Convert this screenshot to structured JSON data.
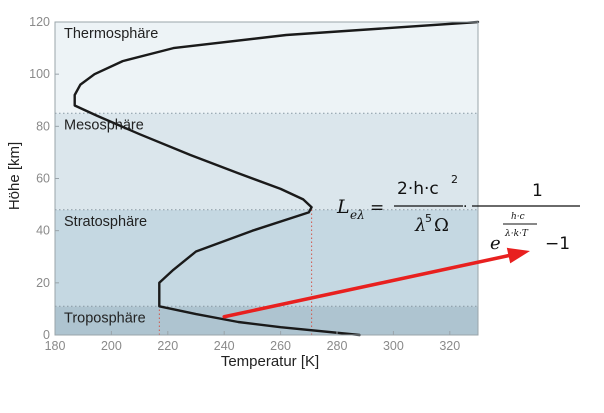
{
  "chart_data": {
    "type": "line",
    "xlabel": "Temperatur [K]",
    "ylabel": "Höhe [km]",
    "xlim": [
      180,
      330
    ],
    "ylim": [
      0,
      120
    ],
    "xticks": [
      "180",
      "200",
      "220",
      "240",
      "260",
      "280",
      "300",
      "320"
    ],
    "yticks": [
      "0",
      "20",
      "40",
      "60",
      "80",
      "100",
      "120"
    ],
    "grid": false,
    "layers": [
      {
        "name": "Troposphäre",
        "from": 0,
        "to": 11,
        "color": "#aec4d0"
      },
      {
        "name": "Stratosphäre",
        "from": 11,
        "to": 48,
        "color": "#c5d8e2"
      },
      {
        "name": "Mesosphäre",
        "from": 48,
        "to": 85,
        "color": "#dbe6ec"
      },
      {
        "name": "Thermosphäre",
        "from": 85,
        "to": 120,
        "color": "#edf3f6"
      }
    ],
    "boundaries_km": [
      11,
      48,
      85
    ],
    "reference_lines_K": [
      217,
      271
    ],
    "series": [
      {
        "x": [
          288,
          260,
          245,
          230,
          217,
          217,
          217,
          222,
          230,
          250,
          270,
          271,
          268,
          260,
          245,
          228,
          210,
          195,
          187,
          187,
          189,
          194,
          204,
          222,
          262,
          330
        ],
        "y": [
          0,
          3,
          5,
          8,
          11,
          15,
          20,
          25,
          32,
          40,
          47,
          49,
          52,
          56,
          62,
          69,
          77,
          84,
          88,
          92,
          96,
          100,
          105,
          110,
          115,
          120
        ],
        "color": "#1a1a1a"
      }
    ],
    "annotation": {
      "formula_lhs": "L",
      "formula_lhs_sub": "eλ",
      "num1": "2·h·c",
      "num1_exp": "2",
      "den1": "λ",
      "den1_exp": "5",
      "den1_tail": "Ω",
      "num2": "1",
      "den2_base": "e",
      "den2_exp_num": "h·c",
      "den2_exp_den": "λ·k·T",
      "den2_tail": "−1",
      "arrow_from": [
        240,
        7
      ],
      "arrow_color": "#e8201f"
    }
  }
}
